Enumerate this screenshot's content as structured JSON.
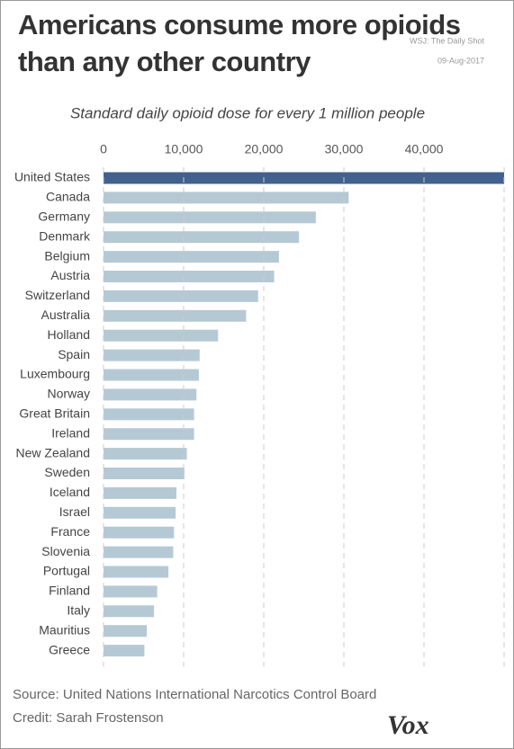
{
  "chart_data": {
    "type": "bar",
    "orientation": "horizontal",
    "title": "Americans consume more opioids than any other country",
    "subtitle": "Standard daily opioid dose for every 1 million people",
    "stamp": [
      "WSJ: The Daily Shot",
      "09-Aug-2017"
    ],
    "source": "Source: United Nations International Narcotics Control Board",
    "credit": "Credit: Sarah Frostenson",
    "logo": "Vox",
    "categories": [
      "United States",
      "Canada",
      "Germany",
      "Denmark",
      "Belgium",
      "Austria",
      "Switzerland",
      "Australia",
      "Holland",
      "Spain",
      "Luxembourg",
      "Norway",
      "Great Britain",
      "Ireland",
      "New Zealand",
      "Sweden",
      "Iceland",
      "Israel",
      "France",
      "Slovenia",
      "Portugal",
      "Finland",
      "Italy",
      "Mauritius",
      "Greece"
    ],
    "values": [
      50000,
      30600,
      26500,
      24400,
      21900,
      21300,
      19300,
      17800,
      14300,
      12000,
      11900,
      11600,
      11300,
      11300,
      10400,
      10100,
      9100,
      9000,
      8800,
      8700,
      8100,
      6700,
      6300,
      5400,
      5100
    ],
    "colors": [
      "#42618c",
      "#b5c9d5"
    ],
    "xlim": [
      0,
      50000
    ],
    "xticks": [
      0,
      {
        "value": 10000,
        "label": "10,000"
      },
      {
        "value": 20000,
        "label": "20,000"
      },
      {
        "value": 30000,
        "label": "30,000"
      },
      {
        "value": 40000,
        "label": "40,000"
      }
    ],
    "grid": true
  }
}
